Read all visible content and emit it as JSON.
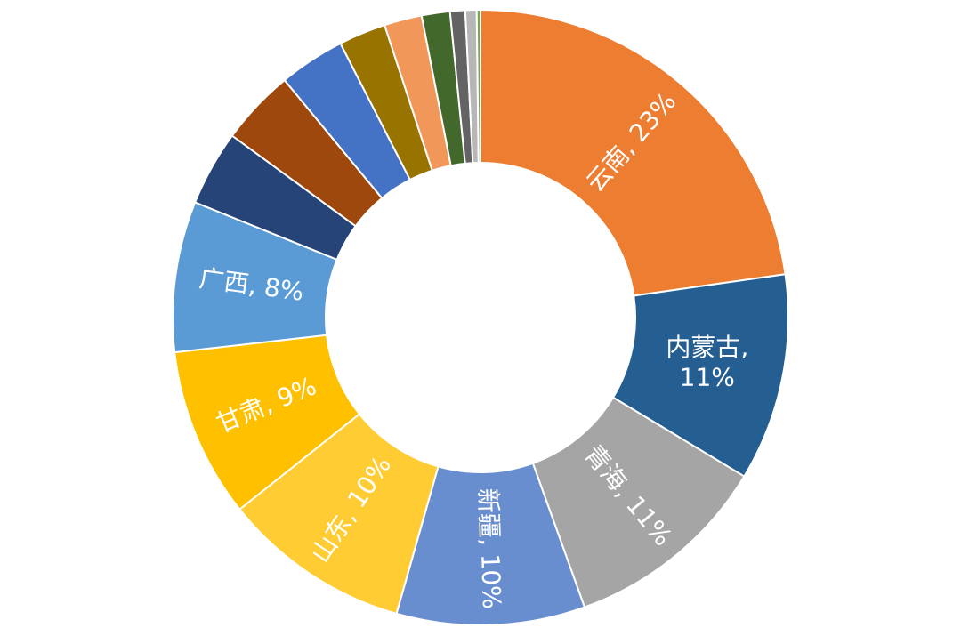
{
  "chart_data": {
    "type": "pie",
    "variant": "donut",
    "title": "",
    "legend": "none",
    "start": "top, clockwise",
    "slices": [
      {
        "name": "云南",
        "value": 23,
        "label": "云南, 23%",
        "color": "#ED7D31",
        "show_label": true
      },
      {
        "name": "内蒙古",
        "value": 11,
        "label": "内蒙古, 11%",
        "label_lines": [
          "内蒙古,",
          "11%"
        ],
        "color": "#255E91",
        "show_label": true
      },
      {
        "name": "青海",
        "value": 11,
        "label": "青海, 11%",
        "color": "#A5A5A5",
        "show_label": true
      },
      {
        "name": "新疆",
        "value": 10,
        "label": "新疆, 10%",
        "color": "#698ED0",
        "show_label": true
      },
      {
        "name": "山东",
        "value": 10,
        "label": "山东, 10%",
        "color": "#FFCD33",
        "show_label": true
      },
      {
        "name": "甘肃",
        "value": 9,
        "label": "甘肃, 9%",
        "color": "#FFC000",
        "show_label": true
      },
      {
        "name": "广西",
        "value": 8,
        "label": "广西, 8%",
        "color": "#5B9BD5",
        "show_label": true
      },
      {
        "name": "",
        "value": 4,
        "color": "#264478",
        "show_label": false
      },
      {
        "name": "",
        "value": 4,
        "color": "#9E480E",
        "show_label": false
      },
      {
        "name": "",
        "value": 3.5,
        "color": "#4472C4",
        "show_label": false
      },
      {
        "name": "",
        "value": 2.5,
        "color": "#997300",
        "show_label": false
      },
      {
        "name": "",
        "value": 2,
        "color": "#F1975A",
        "show_label": false
      },
      {
        "name": "",
        "value": 1.5,
        "color": "#43682B",
        "show_label": false
      },
      {
        "name": "",
        "value": 0.8,
        "color": "#636363",
        "show_label": false
      },
      {
        "name": "",
        "value": 0.6,
        "color": "#B7B7B7",
        "show_label": false
      },
      {
        "name": "",
        "value": 0.2,
        "color": "#70AD47",
        "show_label": false
      }
    ]
  }
}
